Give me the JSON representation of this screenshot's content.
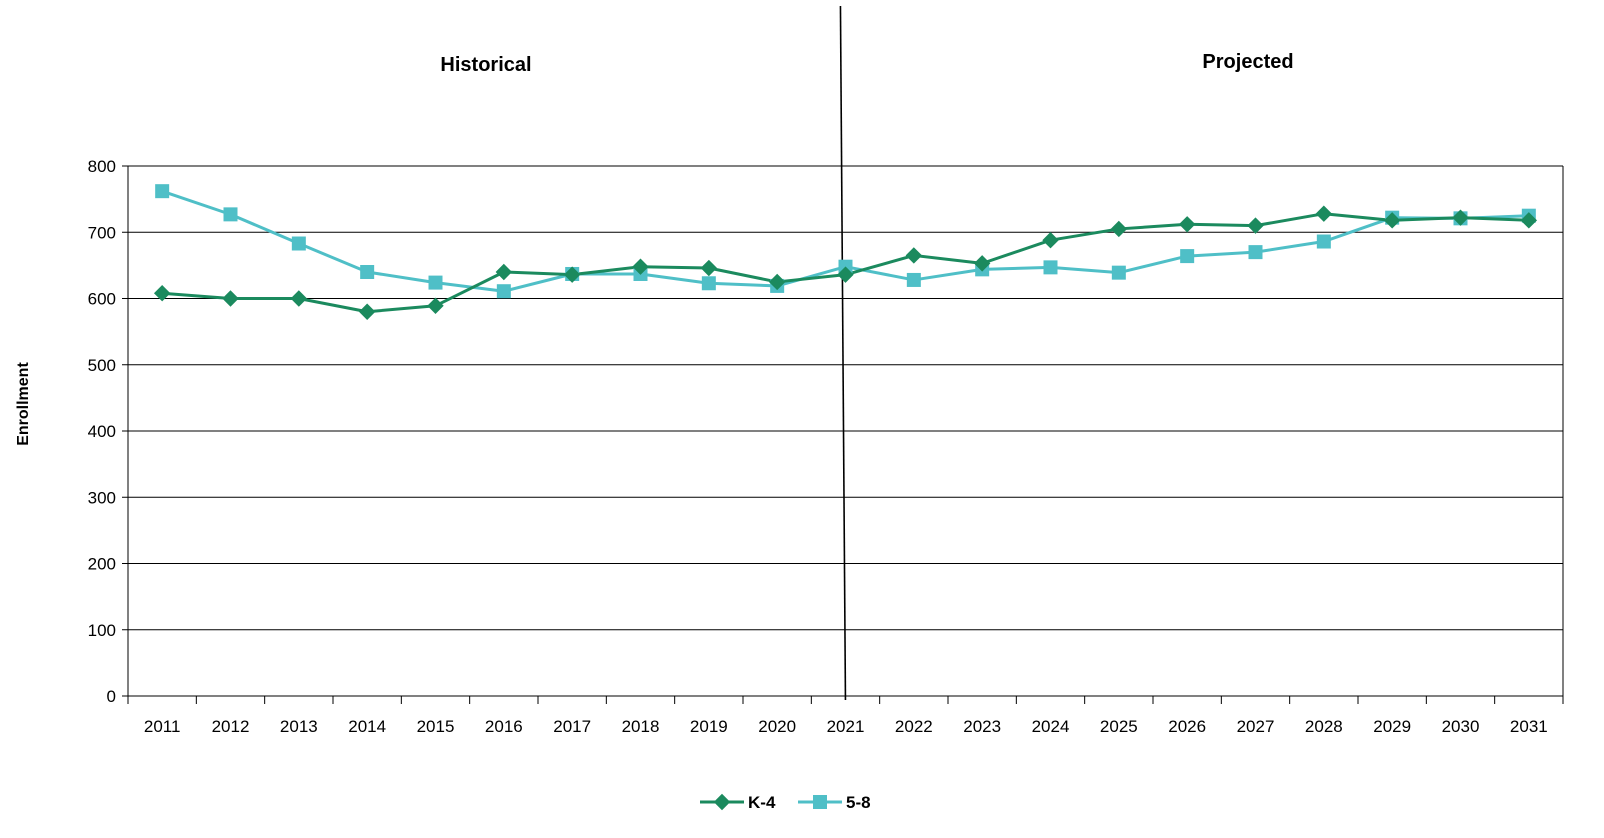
{
  "colors": {
    "k4": "#1b8a5e",
    "g58": "#4fbfc7",
    "grid": "#000000",
    "divider": "#000000"
  },
  "chart_data": {
    "type": "line",
    "x": [
      "2011",
      "2012",
      "2013",
      "2014",
      "2015",
      "2016",
      "2017",
      "2018",
      "2019",
      "2020",
      "2021",
      "2022",
      "2023",
      "2024",
      "2025",
      "2026",
      "2027",
      "2028",
      "2029",
      "2030",
      "2031"
    ],
    "series": [
      {
        "name": "K-4",
        "marker": "diamond",
        "values": [
          608,
          600,
          600,
          580,
          589,
          640,
          636,
          648,
          646,
          625,
          636,
          665,
          653,
          688,
          705,
          712,
          710,
          728,
          718,
          722,
          718
        ]
      },
      {
        "name": "5-8",
        "marker": "square",
        "values": [
          762,
          727,
          683,
          640,
          624,
          611,
          637,
          637,
          623,
          619,
          648,
          628,
          644,
          647,
          639,
          664,
          670,
          686,
          722,
          721,
          725
        ]
      }
    ],
    "ylabel": "Enrollment",
    "ylim": [
      0,
      800
    ],
    "yticks": [
      "0",
      "100",
      "200",
      "300",
      "400",
      "500",
      "600",
      "700",
      "800"
    ],
    "annotations": [
      {
        "text": "Historical",
        "region": "left"
      },
      {
        "text": "Projected",
        "region": "right"
      }
    ],
    "divider_at": "2021",
    "grid": true,
    "legend_position": "bottom-center"
  }
}
